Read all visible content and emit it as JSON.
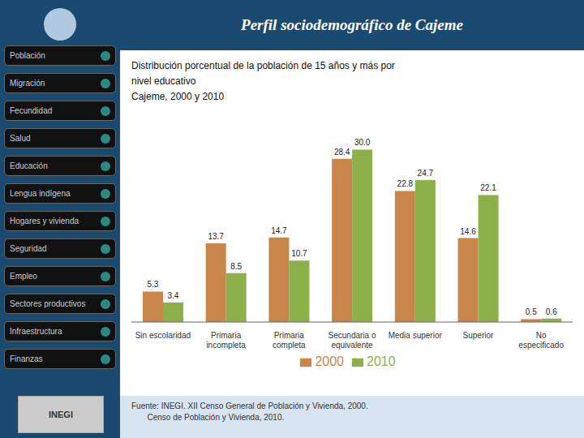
{
  "chart_data": {
    "type": "bar",
    "title": "Distribución porcentual de la población de 15 años y más por\nnivel educativo\nCajeme, 2000 y 2010",
    "categories": [
      "Sin escolaridad",
      "Primaria\nincompleta",
      "Primaria\ncompleta",
      "Secundaria o\nequivalente",
      "Media superior",
      "Superior",
      "No\nespecificado"
    ],
    "series": [
      {
        "name": "2000",
        "color": "#C8864B",
        "values": [
          5.3,
          13.7,
          14.7,
          28.4,
          22.8,
          14.6,
          0.5
        ]
      },
      {
        "name": "2010",
        "color": "#8DB04A",
        "values": [
          3.4,
          8.5,
          10.7,
          30.0,
          24.7,
          22.1,
          0.6
        ],
        "value_labels": [
          "3.4",
          "8.5",
          "10.7",
          "30.0",
          "24.7",
          "22.1",
          "0.6"
        ]
      }
    ],
    "ylim": [
      0,
      35
    ],
    "data_labels": true,
    "tick_labels": "x",
    "grid": false,
    "legend": "bottom",
    "annotations": [
      "Perfil sociodemográfico de Cajeme",
      "Población",
      "Migración",
      "Fecundidad",
      "Salud",
      "Educación",
      "Lengua indígena",
      "Hogares y vivienda",
      "Seguridad",
      "Empleo",
      "Sectores productivos",
      "Infraestructura",
      "Finanzas",
      "INEGI",
      "Fuente: INEGI. XII Censo General de Población y Vivienda, 2000.",
      "       Censo de Población y Vivienda, 2010."
    ]
  }
}
